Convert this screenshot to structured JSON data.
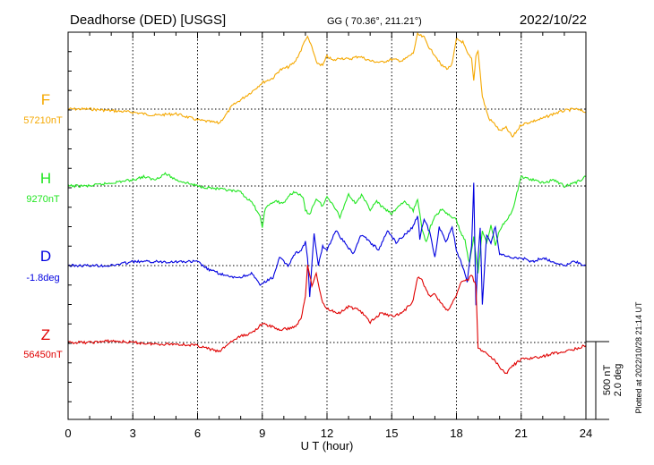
{
  "chart_data": {
    "type": "line",
    "title": "Deadhorse (DED)  [USGS]",
    "coords_label": "GG ( 70.36°, 211.21°)",
    "date": "2022/10/22",
    "xlabel": "U T (hour)",
    "xlim": [
      0,
      24
    ],
    "xticks": [
      "0",
      "3",
      "6",
      "9",
      "12",
      "15",
      "18",
      "21",
      "24"
    ],
    "grid": true,
    "scale_label_1": "500 nT",
    "scale_label_2": "2.0 deg",
    "plotted_note": "Plotted at 2022/10/28 21:14 UT",
    "series": [
      {
        "name": "F",
        "baseline_label": "57210nT",
        "unit": "nT",
        "color": "#f5a800",
        "x": [
          0,
          1,
          2,
          3,
          4,
          5,
          5.5,
          6,
          6.5,
          7,
          7.3,
          7.6,
          8,
          8.5,
          9,
          9.5,
          9.8,
          10.2,
          10.5,
          10.8,
          11,
          11.1,
          11.3,
          11.5,
          11.8,
          12,
          12.3,
          12.6,
          13,
          13.5,
          14,
          14.5,
          15,
          15.5,
          16,
          16.2,
          16.5,
          16.8,
          17,
          17.3,
          17.6,
          17.8,
          18,
          18.3,
          18.5,
          18.7,
          18.8,
          18.9,
          19,
          19.2,
          19.5,
          19.8,
          20,
          20.3,
          20.6,
          21,
          21.5,
          22,
          22.5,
          23,
          23.5,
          24
        ],
        "y": [
          0,
          0,
          -10,
          -20,
          -40,
          -30,
          -50,
          -70,
          -80,
          -90,
          -40,
          20,
          60,
          110,
          170,
          200,
          250,
          270,
          300,
          380,
          450,
          460,
          400,
          300,
          280,
          340,
          310,
          330,
          320,
          340,
          310,
          300,
          320,
          310,
          360,
          480,
          460,
          380,
          350,
          280,
          260,
          290,
          450,
          430,
          360,
          320,
          180,
          340,
          380,
          80,
          -60,
          -100,
          -140,
          -120,
          -180,
          -100,
          -80,
          -60,
          -30,
          -10,
          0,
          -20
        ]
      },
      {
        "name": "H",
        "baseline_label": "9270nT",
        "unit": "nT",
        "color": "#22e622",
        "x": [
          0,
          1,
          2,
          3,
          3.5,
          4,
          4.5,
          5,
          5.5,
          6,
          6.5,
          7,
          7.5,
          8,
          8.3,
          8.6,
          8.9,
          9,
          9.1,
          9.3,
          9.6,
          10,
          10.3,
          10.6,
          10.9,
          11,
          11.2,
          11.5,
          11.8,
          12,
          12.3,
          12.6,
          13,
          13.3,
          13.6,
          14,
          14.3,
          14.6,
          15,
          15.3,
          15.6,
          16,
          16.2,
          16.4,
          16.6,
          16.8,
          17,
          17.3,
          17.6,
          18,
          18.2,
          18.4,
          18.6,
          18.8,
          19,
          19.2,
          19.4,
          19.6,
          19.8,
          20,
          20.3,
          20.6,
          21,
          21.5,
          22,
          22.5,
          23,
          23.5,
          24
        ],
        "y": [
          0,
          0,
          20,
          40,
          60,
          40,
          80,
          40,
          20,
          0,
          -10,
          -20,
          -30,
          -40,
          -80,
          -120,
          -200,
          -270,
          -160,
          -120,
          -100,
          -110,
          -50,
          -40,
          -80,
          -160,
          -180,
          -80,
          -130,
          -70,
          -120,
          -200,
          -50,
          -110,
          -60,
          -150,
          -100,
          -140,
          -180,
          -130,
          -100,
          -160,
          -80,
          -280,
          -360,
          -260,
          -200,
          -150,
          -180,
          -220,
          -300,
          -350,
          -500,
          -330,
          -560,
          -280,
          -370,
          -250,
          -380,
          -280,
          -220,
          -160,
          60,
          40,
          20,
          40,
          0,
          20,
          60
        ]
      },
      {
        "name": "D",
        "baseline_label": "-1.8deg",
        "unit": "deg",
        "color": "#0000e0",
        "x": [
          0,
          1,
          2,
          3,
          4,
          5,
          6,
          6.5,
          7,
          7.5,
          8,
          8.5,
          8.9,
          9.2,
          9.5,
          9.8,
          10.2,
          10.5,
          10.8,
          11,
          11.1,
          11.2,
          11.4,
          11.6,
          11.8,
          12,
          12.4,
          12.8,
          13.2,
          13.6,
          14,
          14.4,
          14.8,
          15.2,
          15.6,
          16,
          16.2,
          16.3,
          16.5,
          16.8,
          17,
          17.2,
          17.5,
          17.8,
          18,
          18.2,
          18.5,
          18.7,
          18.8,
          18.9,
          19,
          19.1,
          19.2,
          19.4,
          19.6,
          19.8,
          20,
          20.5,
          21,
          21.5,
          22,
          22.5,
          23,
          23.5,
          24
        ],
        "y": [
          0,
          0,
          0,
          0.1,
          0.1,
          0.1,
          0.1,
          -0.1,
          -0.2,
          -0.3,
          -0.3,
          -0.2,
          -0.5,
          -0.4,
          -0.3,
          0.2,
          0.0,
          0.3,
          0.4,
          0.6,
          0.2,
          -0.8,
          0.8,
          0.0,
          0.5,
          0.4,
          0.9,
          0.6,
          0.3,
          0.8,
          0.6,
          0.4,
          0.9,
          0.6,
          0.8,
          1.0,
          1.3,
          0.7,
          1.2,
          0.8,
          0.2,
          1.0,
          0.6,
          1.0,
          0.4,
          0.1,
          -0.4,
          0.5,
          2.1,
          -1.0,
          0.2,
          1.0,
          -1.0,
          0.8,
          0.6,
          1.0,
          0.3,
          0.2,
          0.2,
          0.1,
          0.2,
          0.1,
          0.0,
          0.1,
          0.0
        ]
      },
      {
        "name": "Z",
        "baseline_label": "56450nT",
        "unit": "nT",
        "color": "#e00000",
        "x": [
          0,
          1,
          2,
          3,
          4,
          5,
          6,
          6.5,
          7,
          7.5,
          8,
          8.5,
          9,
          9.5,
          9.8,
          10.2,
          10.5,
          10.8,
          11,
          11.1,
          11.3,
          11.5,
          11.8,
          12,
          12.3,
          12.6,
          13,
          13.5,
          14,
          14.5,
          15,
          15.5,
          16,
          16.2,
          16.4,
          16.6,
          16.8,
          17,
          17.3,
          17.6,
          17.8,
          18,
          18.2,
          18.5,
          18.7,
          18.9,
          19.0,
          19.2,
          19.5,
          19.8,
          20,
          20.3,
          20.6,
          21,
          21.5,
          22,
          22.5,
          23,
          23.5,
          24
        ],
        "y": [
          0,
          0,
          10,
          0,
          -10,
          -10,
          -20,
          -40,
          -60,
          0,
          40,
          60,
          120,
          100,
          80,
          90,
          100,
          150,
          300,
          500,
          370,
          440,
          250,
          220,
          200,
          190,
          230,
          210,
          130,
          190,
          170,
          190,
          270,
          420,
          410,
          330,
          300,
          310,
          250,
          200,
          250,
          300,
          390,
          400,
          430,
          370,
          -30,
          -60,
          -80,
          -120,
          -160,
          -200,
          -150,
          -110,
          -100,
          -90,
          -70,
          -60,
          -40,
          -20
        ]
      }
    ]
  }
}
